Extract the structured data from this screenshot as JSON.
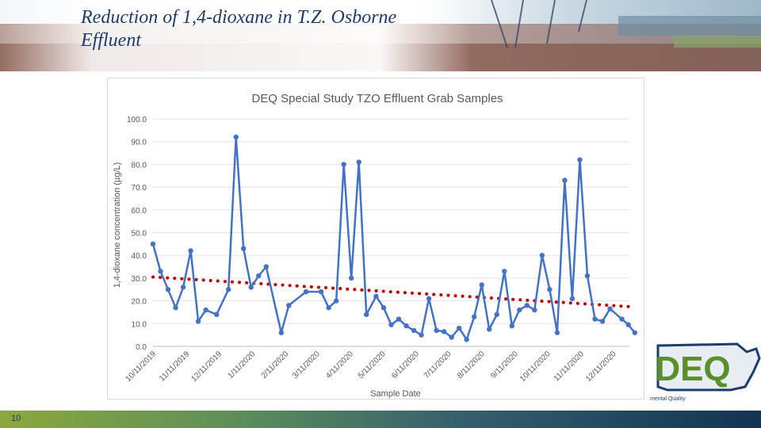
{
  "slide": {
    "title": "Reduction of 1,4-dioxane in T.Z. Osborne Effluent",
    "page_number": "10"
  },
  "colors": {
    "series": "#4472c4",
    "trendline": "#c00000",
    "title": "#1f3b6e",
    "logo_green": "#5a8f2c",
    "logo_navy": "#1d3c6e"
  },
  "logo": {
    "icon": "deq-logo-icon",
    "text": "DEQ",
    "subtext": "mental Quality"
  },
  "chart_data": {
    "type": "line",
    "title": "DEQ Special Study TZO Effluent Grab Samples",
    "xlabel": "Sample Date",
    "ylabel": "1,4-dioxane concentration (µg/L)",
    "ylim": [
      0,
      100
    ],
    "yticks": [
      "0.0",
      "10.0",
      "20.0",
      "30.0",
      "40.0",
      "50.0",
      "60.0",
      "70.0",
      "80.0",
      "90.0",
      "100.0"
    ],
    "xlim": [
      "2019-10-11",
      "2020-12-26"
    ],
    "xticks": [
      "10/11/2019",
      "11/11/2019",
      "12/11/2019",
      "1/11/2020",
      "2/11/2020",
      "3/11/2020",
      "4/11/2020",
      "5/11/2020",
      "6/11/2020",
      "7/11/2020",
      "8/11/2020",
      "9/11/2020",
      "10/11/2020",
      "11/11/2020",
      "12/11/2020"
    ],
    "grid": true,
    "legend": "none",
    "series": [
      {
        "style": "line-markers",
        "points": [
          [
            "2019-10-11",
            45.0
          ],
          [
            "2019-10-18",
            33.0
          ],
          [
            "2019-10-25",
            25.0
          ],
          [
            "2019-11-01",
            17.0
          ],
          [
            "2019-11-08",
            26.0
          ],
          [
            "2019-11-15",
            42.0
          ],
          [
            "2019-11-22",
            11.0
          ],
          [
            "2019-11-29",
            16.0
          ],
          [
            "2019-12-09",
            14.0
          ],
          [
            "2019-12-20",
            25.0
          ],
          [
            "2019-12-27",
            92.0
          ],
          [
            "2020-01-03",
            43.0
          ],
          [
            "2020-01-10",
            26.0
          ],
          [
            "2020-01-17",
            31.0
          ],
          [
            "2020-01-24",
            35.0
          ],
          [
            "2020-02-07",
            6.0
          ],
          [
            "2020-02-14",
            18.0
          ],
          [
            "2020-03-01",
            24.0
          ],
          [
            "2020-03-15",
            24.0
          ],
          [
            "2020-03-22",
            17.0
          ],
          [
            "2020-03-29",
            20.0
          ],
          [
            "2020-04-05",
            80.0
          ],
          [
            "2020-04-12",
            30.0
          ],
          [
            "2020-04-19",
            81.0
          ],
          [
            "2020-04-26",
            14.0
          ],
          [
            "2020-05-05",
            22.0
          ],
          [
            "2020-05-12",
            17.0
          ],
          [
            "2020-05-19",
            9.5
          ],
          [
            "2020-05-26",
            12.0
          ],
          [
            "2020-06-02",
            9.0
          ],
          [
            "2020-06-09",
            7.0
          ],
          [
            "2020-06-16",
            5.0
          ],
          [
            "2020-06-23",
            21.0
          ],
          [
            "2020-06-30",
            7.0
          ],
          [
            "2020-07-07",
            6.5
          ],
          [
            "2020-07-14",
            4.0
          ],
          [
            "2020-07-21",
            8.0
          ],
          [
            "2020-07-28",
            3.0
          ],
          [
            "2020-08-04",
            13.0
          ],
          [
            "2020-08-11",
            27.0
          ],
          [
            "2020-08-18",
            7.5
          ],
          [
            "2020-08-25",
            14.0
          ],
          [
            "2020-09-01",
            33.0
          ],
          [
            "2020-09-08",
            9.0
          ],
          [
            "2020-09-15",
            16.0
          ],
          [
            "2020-09-22",
            18.0
          ],
          [
            "2020-09-29",
            16.0
          ],
          [
            "2020-10-06",
            40.0
          ],
          [
            "2020-10-13",
            25.0
          ],
          [
            "2020-10-20",
            6.0
          ],
          [
            "2020-10-27",
            73.0
          ],
          [
            "2020-11-03",
            21.0
          ],
          [
            "2020-11-10",
            82.0
          ],
          [
            "2020-11-17",
            31.0
          ],
          [
            "2020-11-24",
            12.0
          ],
          [
            "2020-12-01",
            11.0
          ],
          [
            "2020-12-08",
            16.5
          ],
          [
            "2020-12-19",
            12.0
          ],
          [
            "2020-12-25",
            9.5
          ],
          [
            "2020-12-31",
            6.0
          ]
        ]
      },
      {
        "style": "dotted-trendline",
        "points": [
          [
            "2019-10-11",
            30.5
          ],
          [
            "2020-12-25",
            17.5
          ]
        ]
      }
    ]
  }
}
